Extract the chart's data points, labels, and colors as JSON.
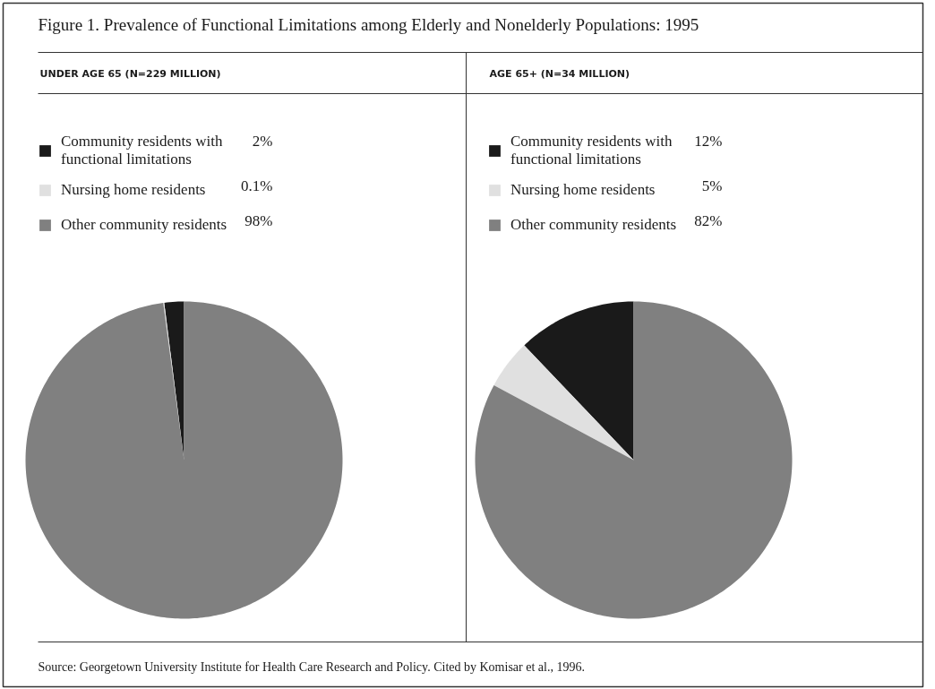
{
  "chart_data": [
    {
      "type": "pie",
      "title": "Figure 1. Prevalence of Functional Limitations among Elderly and Nonelderly Populations: 1995",
      "subtitle": "UNDER AGE 65 (N=229 MILLION)",
      "categories": [
        "Community residents with functional limitations",
        "Nursing home residents",
        "Other community residents"
      ],
      "values": [
        2,
        0.1,
        98
      ],
      "value_labels": [
        "2%",
        "0.1%",
        "98%"
      ],
      "colors": [
        "#1a1a1a",
        "#e0e0e0",
        "#808080"
      ],
      "legend": "top"
    },
    {
      "type": "pie",
      "subtitle": "AGE 65+ (N=34 MILLION)",
      "categories": [
        "Community residents with functional limitations",
        "Nursing home residents",
        "Other community residents"
      ],
      "values": [
        12,
        5,
        82
      ],
      "value_labels": [
        "12%",
        "5%",
        "82%"
      ],
      "colors": [
        "#1a1a1a",
        "#e0e0e0",
        "#808080"
      ],
      "legend": "top",
      "annotations": [
        "Source: Georgetown University Institute for Health Care Research and Policy. Cited by Komisar et al., 1996."
      ]
    }
  ]
}
